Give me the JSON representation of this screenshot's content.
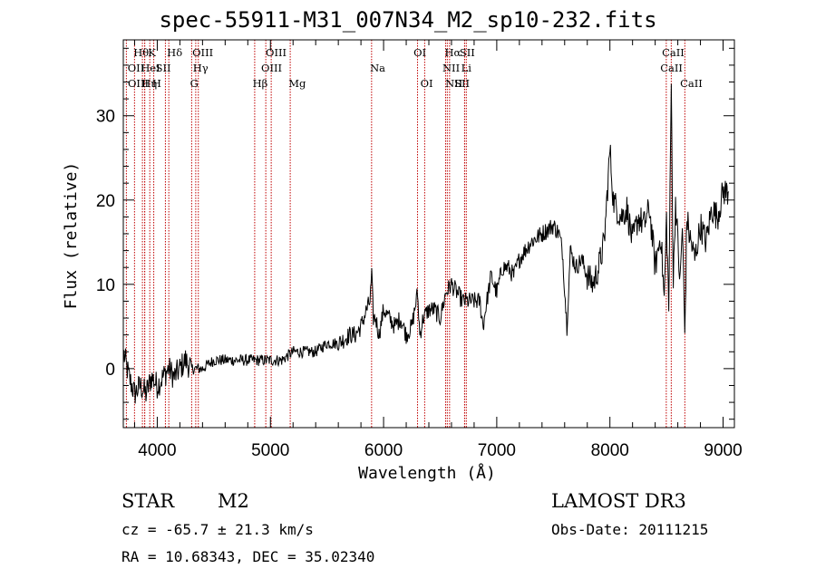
{
  "chart_data": {
    "type": "line",
    "title": "spec-55911-M31_007N34_M2_sp10-232.fits",
    "xlabel": "Wavelength (Å)",
    "ylabel": "Flux (relative)",
    "xlim": [
      3700,
      9100
    ],
    "ylim": [
      -7,
      39
    ],
    "xticks": [
      4000,
      5000,
      6000,
      7000,
      8000,
      9000
    ],
    "yticks": [
      0,
      10,
      20,
      30
    ],
    "x_tick_labels": [
      "4000",
      "5000",
      "6000",
      "7000",
      "8000",
      "9000"
    ],
    "y_tick_labels": [
      "0",
      "10",
      "20",
      "30"
    ],
    "series": [
      {
        "name": "spectrum",
        "x": [
          3700,
          3750,
          3800,
          3850,
          3900,
          3950,
          4000,
          4050,
          4100,
          4150,
          4200,
          4250,
          4300,
          4350,
          4400,
          4500,
          4600,
          4700,
          4800,
          4900,
          5000,
          5100,
          5200,
          5300,
          5400,
          5500,
          5600,
          5700,
          5750,
          5800,
          5850,
          5880,
          5895,
          5910,
          5930,
          5960,
          6000,
          6050,
          6100,
          6150,
          6200,
          6250,
          6300,
          6320,
          6350,
          6400,
          6450,
          6500,
          6550,
          6600,
          6650,
          6700,
          6750,
          6800,
          6850,
          6880,
          6900,
          6950,
          7000,
          7050,
          7100,
          7150,
          7200,
          7300,
          7400,
          7500,
          7550,
          7580,
          7620,
          7650,
          7700,
          7750,
          7800,
          7850,
          7900,
          7950,
          8000,
          8030,
          8060,
          8100,
          8150,
          8200,
          8250,
          8300,
          8350,
          8400,
          8450,
          8480,
          8500,
          8520,
          8542,
          8560,
          8580,
          8600,
          8620,
          8640,
          8662,
          8680,
          8700,
          8750,
          8800,
          8850,
          8900,
          8950,
          9000,
          9050
        ],
        "values": [
          2,
          -1,
          -3,
          -2,
          -3,
          -1,
          -2,
          -1,
          0,
          -1,
          0,
          1,
          0,
          0,
          0,
          1,
          1,
          1,
          1,
          1,
          1,
          1,
          2,
          2,
          2,
          3,
          3,
          4,
          4,
          5,
          7,
          8,
          11,
          6,
          6,
          4,
          7,
          6,
          5,
          6,
          4,
          5,
          9,
          4,
          6,
          7,
          7,
          6,
          9,
          10,
          9,
          8,
          8,
          8,
          8,
          5,
          7,
          11,
          9,
          12,
          12,
          11,
          13,
          15,
          16,
          17,
          16,
          14,
          5,
          14,
          12,
          13,
          11,
          10,
          12,
          15,
          26,
          20,
          19,
          18,
          19,
          15,
          18,
          17,
          19,
          12,
          16,
          8,
          18,
          7,
          34,
          10,
          20,
          15,
          10,
          17,
          4,
          18,
          16,
          13,
          17,
          15,
          19,
          18,
          21,
          21
        ]
      }
    ],
    "lines": [
      {
        "w": 3727,
        "label": "OII",
        "row": 1,
        "lx": 3738
      },
      {
        "w": 3799,
        "label": "Hθ",
        "row": 0,
        "lx": 3790
      },
      {
        "w": 3869,
        "label": "OIII",
        "row": 2,
        "lx": 3740
      },
      {
        "w": 3889,
        "label": "HeI",
        "row": 1,
        "lx": 3855
      },
      {
        "w": 3889,
        "label": "Hη",
        "row": 2,
        "lx": 3862
      },
      {
        "w": 3934,
        "label": "K",
        "row": 0,
        "lx": 3918
      },
      {
        "w": 3969,
        "label": "H",
        "row": 2,
        "lx": 3955
      },
      {
        "w": 4072,
        "label": "SII",
        "row": 1,
        "lx": 3985
      },
      {
        "w": 4102,
        "label": "Hδ",
        "row": 0,
        "lx": 4086
      },
      {
        "w": 4304,
        "label": "G",
        "row": 2,
        "lx": 4290
      },
      {
        "w": 4340,
        "label": "Hγ",
        "row": 1,
        "lx": 4315
      },
      {
        "w": 4363,
        "label": "OIII",
        "row": 0,
        "lx": 4310
      },
      {
        "w": 4861,
        "label": "Hβ",
        "row": 2,
        "lx": 4843
      },
      {
        "w": 4959,
        "label": "OIII",
        "row": 1,
        "lx": 4918
      },
      {
        "w": 5007,
        "label": "OIII",
        "row": 0,
        "lx": 4958
      },
      {
        "w": 5175,
        "label": "Mg",
        "row": 2,
        "lx": 5160
      },
      {
        "w": 5894,
        "label": "Na",
        "row": 1,
        "lx": 5880
      },
      {
        "w": 6300,
        "label": "OI",
        "row": 0,
        "lx": 6265
      },
      {
        "w": 6363,
        "label": "OI",
        "row": 2,
        "lx": 6325
      },
      {
        "w": 6548,
        "label": "NII",
        "row": 1,
        "lx": 6520
      },
      {
        "w": 6563,
        "label": "Hα",
        "row": 0,
        "lx": 6540
      },
      {
        "w": 6583,
        "label": "NII",
        "row": 2,
        "lx": 6545
      },
      {
        "w": 6716,
        "label": "SII",
        "row": 0,
        "lx": 6671
      },
      {
        "w": 6716,
        "label": "SII",
        "row": 2,
        "lx": 6625
      },
      {
        "w": 6731,
        "label": "Li",
        "row": 1,
        "lx": 6685
      },
      {
        "w": 8498,
        "label": "CaII",
        "row": 1,
        "lx": 8445
      },
      {
        "w": 8542,
        "label": "CaII",
        "row": 0,
        "lx": 8460
      },
      {
        "w": 8662,
        "label": "CaII",
        "row": 2,
        "lx": 8620
      }
    ]
  },
  "info": {
    "obj_class": "STAR",
    "obj_subclass": "M2",
    "survey": "LAMOST DR3",
    "redshift": "cz = -65.7 ± 21.3 km/s",
    "obs_date": "Obs-Date: 20111215",
    "coords": "RA =  10.68343, DEC =  35.02340"
  },
  "colors": {
    "line_marker": "#c00000",
    "spectrum": "#000000"
  }
}
